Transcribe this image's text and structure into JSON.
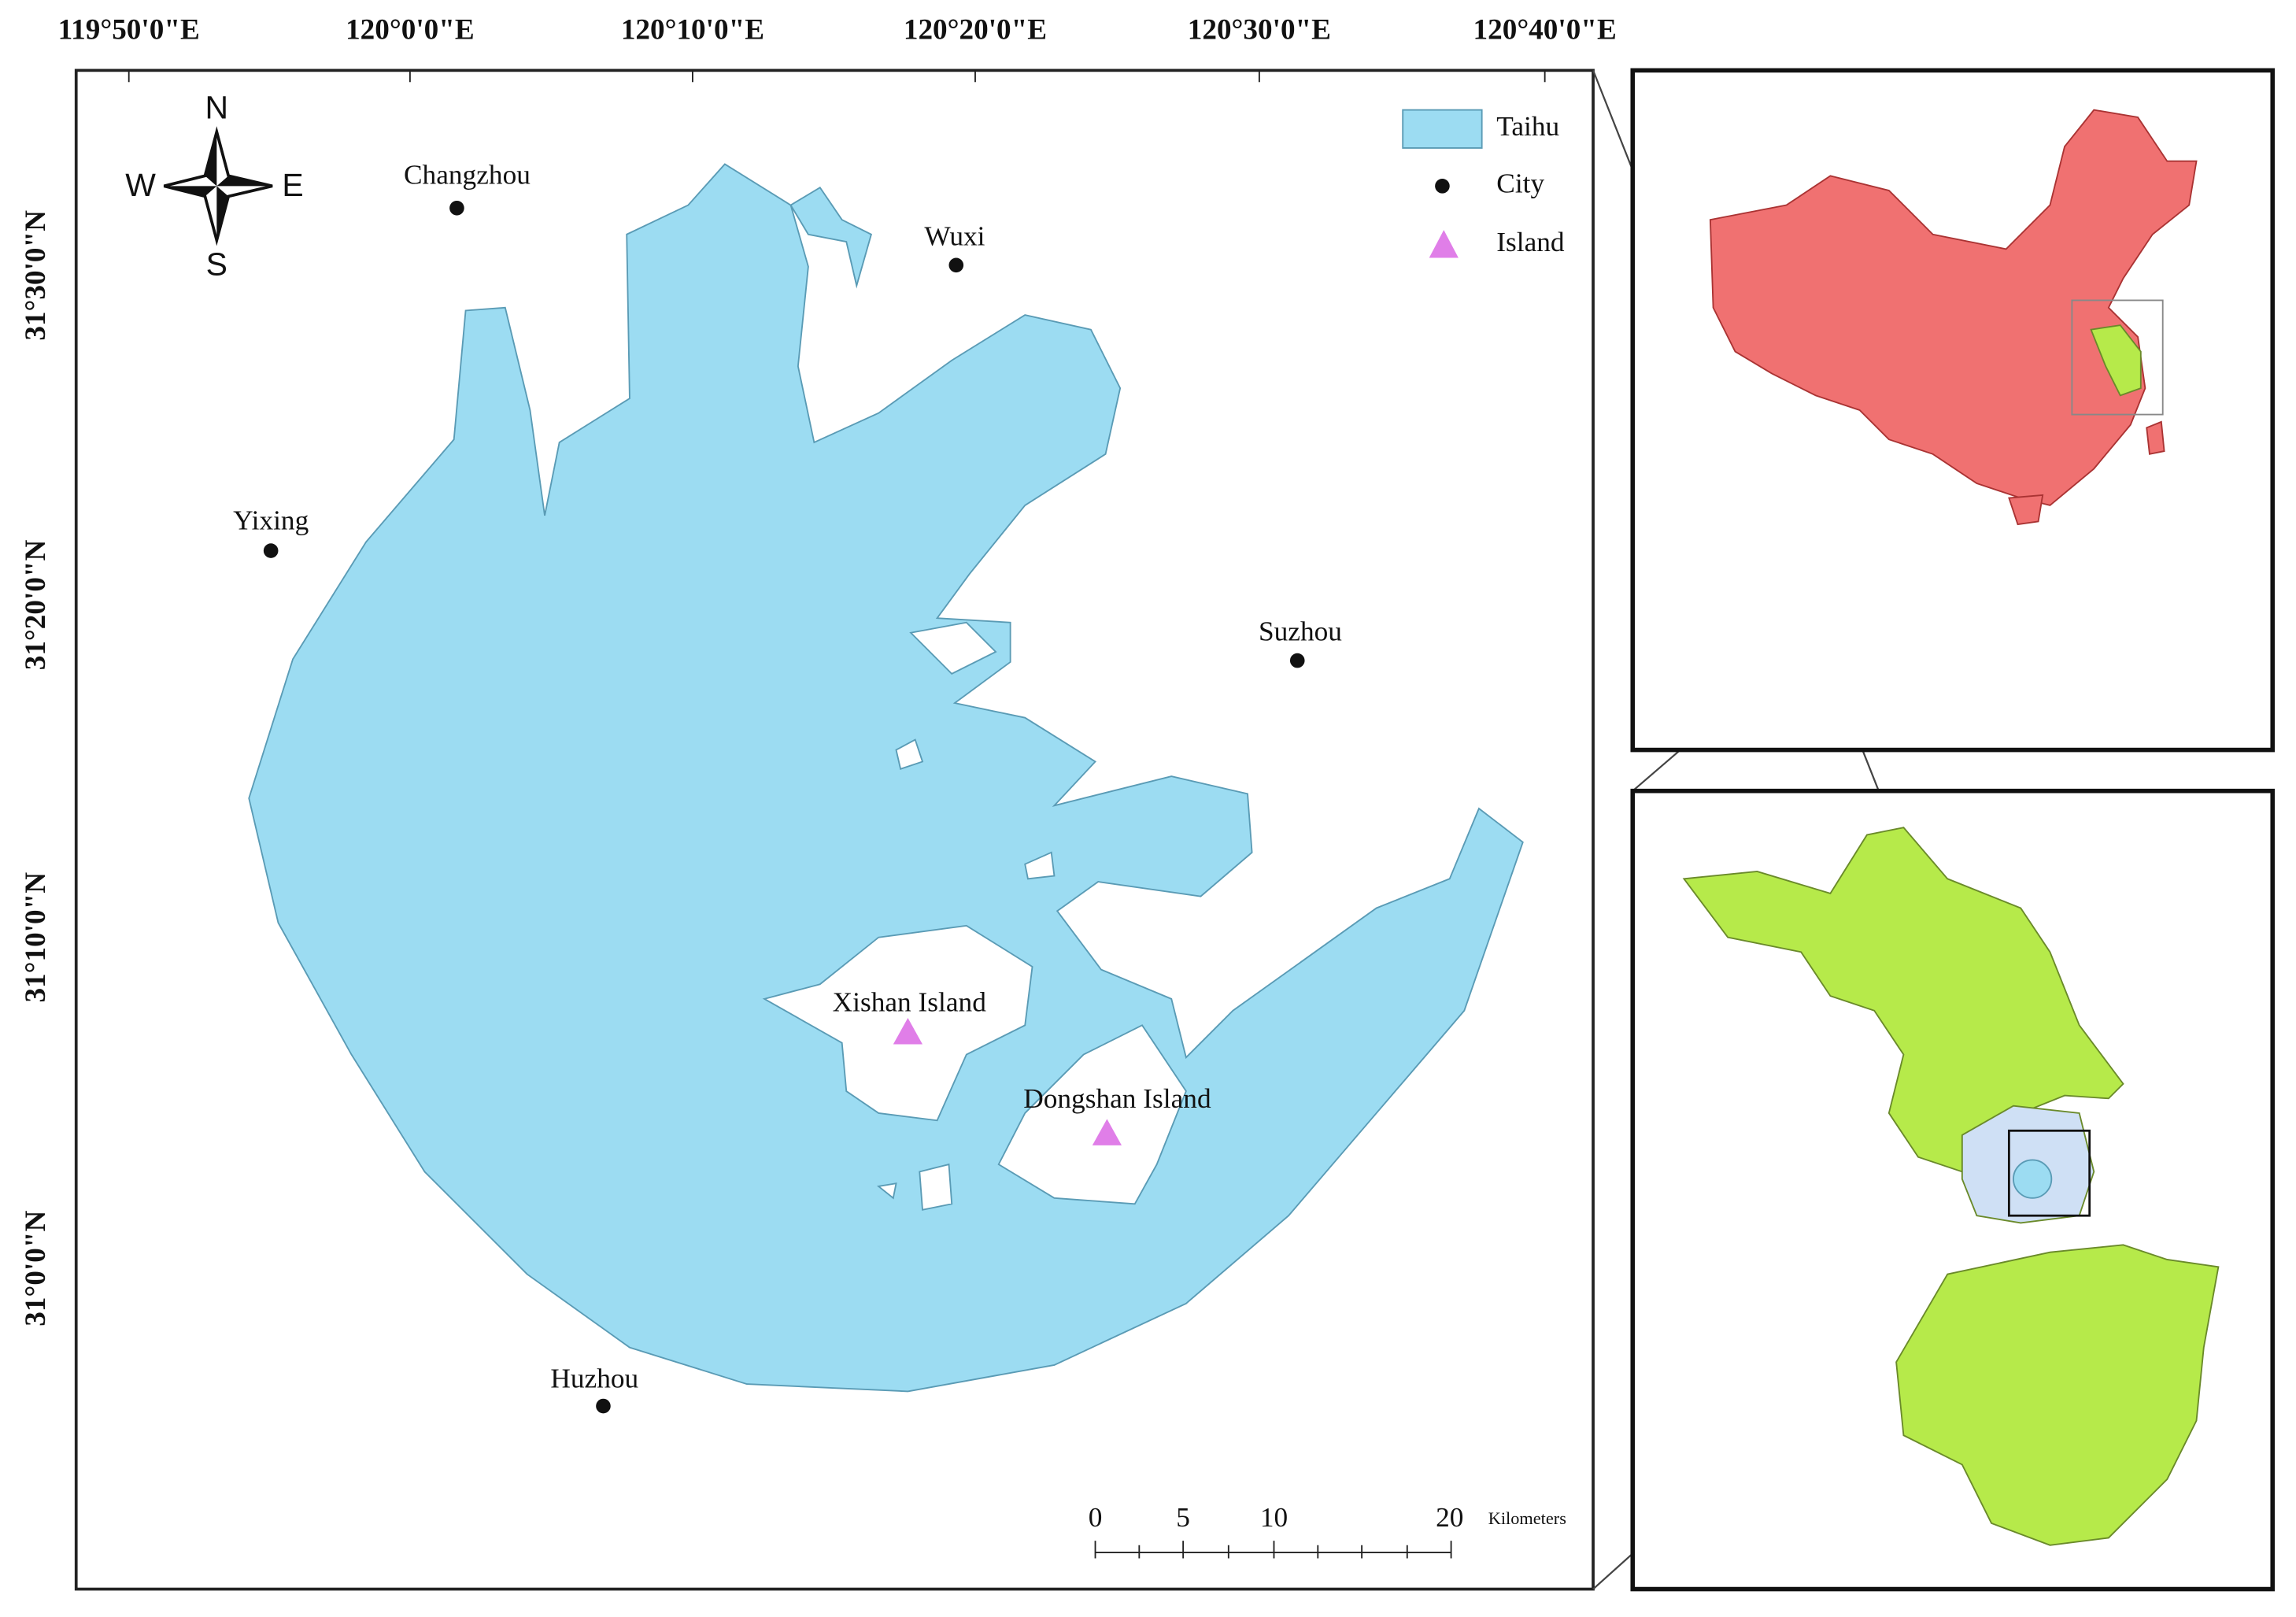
{
  "map": {
    "lon_labels": [
      "119°50'0\"E",
      "120°0'0\"E",
      "120°10'0\"E",
      "120°20'0\"E",
      "120°30'0\"E",
      "120°40'0\"E"
    ],
    "lat_labels": [
      "31°30'0\"N",
      "31°20'0\"N",
      "31°10'0\"N",
      "31°0'0\"N"
    ],
    "compass": {
      "north": "N",
      "south": "S",
      "east": "E",
      "west": "W"
    },
    "legend": [
      "Taihu",
      "City",
      "Island"
    ],
    "cities": [
      "Changzhou",
      "Wuxi",
      "Yixing",
      "Suzhou",
      "Huzhou"
    ],
    "islands": [
      "Xishan Island",
      "Dongshan Island"
    ],
    "scale_bar": {
      "ticks": [
        0,
        5,
        10,
        20
      ],
      "unit": "Kilometers"
    }
  }
}
